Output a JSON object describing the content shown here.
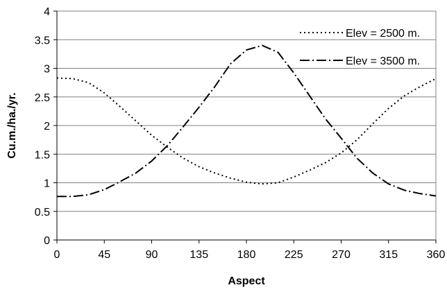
{
  "chart_data": {
    "type": "line",
    "title": "",
    "xlabel": "Aspect",
    "ylabel": "Cu.m./ha./yr.",
    "xlim": [
      0,
      360
    ],
    "ylim": [
      0,
      4
    ],
    "xticks": [
      "0",
      "45",
      "90",
      "135",
      "180",
      "225",
      "270",
      "315",
      "360"
    ],
    "yticks": [
      "0",
      "0.5",
      "1",
      "1.5",
      "2",
      "2.5",
      "3",
      "3.5",
      "4"
    ],
    "grid": "horizontal",
    "legend_position": "top-right",
    "series": [
      {
        "name": "Elev = 2500 m.",
        "dash": "dotted",
        "color": "#000000",
        "x": [
          0,
          15,
          30,
          45,
          60,
          75,
          90,
          105,
          120,
          135,
          150,
          165,
          180,
          195,
          210,
          225,
          240,
          255,
          270,
          285,
          300,
          315,
          330,
          345,
          360
        ],
        "y": [
          2.83,
          2.82,
          2.75,
          2.57,
          2.33,
          2.08,
          1.83,
          1.62,
          1.43,
          1.28,
          1.17,
          1.08,
          1.01,
          0.98,
          1.0,
          1.1,
          1.22,
          1.35,
          1.52,
          1.75,
          2.03,
          2.3,
          2.52,
          2.68,
          2.82
        ]
      },
      {
        "name": "Elev = 3500 m.",
        "dash": "dash-dot",
        "color": "#000000",
        "x": [
          0,
          15,
          30,
          45,
          60,
          75,
          90,
          105,
          120,
          135,
          150,
          165,
          180,
          195,
          210,
          225,
          240,
          255,
          270,
          285,
          300,
          315,
          330,
          345,
          360
        ],
        "y": [
          0.76,
          0.76,
          0.79,
          0.88,
          1.02,
          1.17,
          1.38,
          1.65,
          1.98,
          2.32,
          2.68,
          3.08,
          3.32,
          3.4,
          3.28,
          2.92,
          2.52,
          2.12,
          1.78,
          1.43,
          1.17,
          0.98,
          0.87,
          0.81,
          0.77
        ]
      }
    ]
  }
}
